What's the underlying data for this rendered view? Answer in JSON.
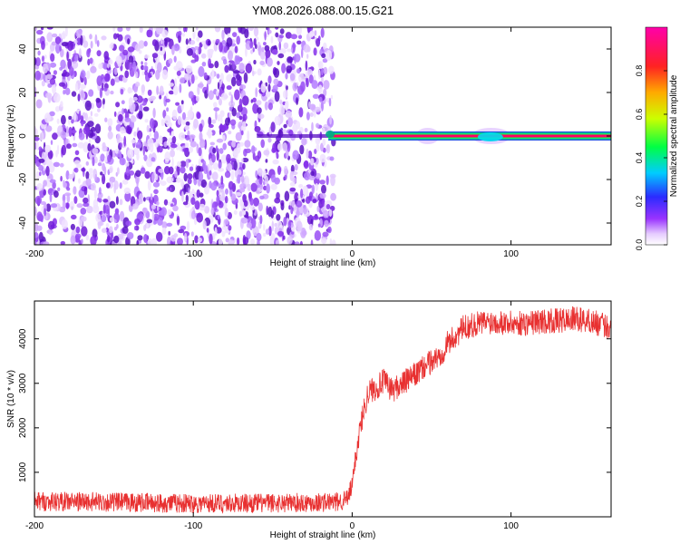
{
  "title": "YM08.2026.088.00.15.G21",
  "colors": {
    "snr_line": "#e83030",
    "noise_purple": "#7a22e8",
    "frame": "#000000",
    "background": "#ffffff"
  },
  "chart_data": [
    {
      "type": "heatmap",
      "name_on_chart": "",
      "xlabel": "Height of straight line (km)",
      "ylabel": "Frequency (Hz)",
      "xlim": [
        -200,
        163
      ],
      "ylim": [
        -50,
        50
      ],
      "xticks": [
        -200,
        -100,
        0,
        100
      ],
      "yticks": [
        -40,
        -20,
        0,
        20,
        40
      ],
      "noise_region_x": [
        -200,
        -15
      ],
      "signal_region_x": [
        -15,
        163
      ],
      "signal_frequency_hz": 0,
      "colorbar": {
        "label": "Normalized spectral amplitude",
        "range": [
          0,
          1
        ],
        "ticks": [
          0.0,
          0.2,
          0.4,
          0.6,
          0.8
        ],
        "tick_labels": [
          "0.0",
          "0.2",
          "0.4",
          "0.6",
          "0.8"
        ]
      }
    },
    {
      "type": "line",
      "xlabel": "Height of straight line (km)",
      "ylabel": "SNR (10 * v/v)",
      "xlim": [
        -200,
        163
      ],
      "ylim": [
        0,
        4850
      ],
      "xticks": [
        -200,
        -100,
        0,
        100
      ],
      "yticks": [
        1000,
        2000,
        3000,
        4000
      ],
      "series": [
        {
          "x": [
            -200,
            -150,
            -100,
            -50,
            -10,
            -3,
            0,
            2,
            5,
            8,
            10,
            15,
            20,
            25,
            30,
            40,
            50,
            55,
            60,
            65,
            70,
            80,
            90,
            100,
            110,
            120,
            130,
            140,
            150,
            163
          ],
          "y": [
            350,
            330,
            300,
            310,
            330,
            400,
            700,
            1300,
            2000,
            2500,
            2800,
            2900,
            3050,
            2850,
            2950,
            3200,
            3500,
            3600,
            3900,
            4050,
            4250,
            4350,
            4400,
            4350,
            4350,
            4400,
            4400,
            4450,
            4400,
            4250
          ],
          "noise_amplitude": 220
        }
      ]
    }
  ]
}
